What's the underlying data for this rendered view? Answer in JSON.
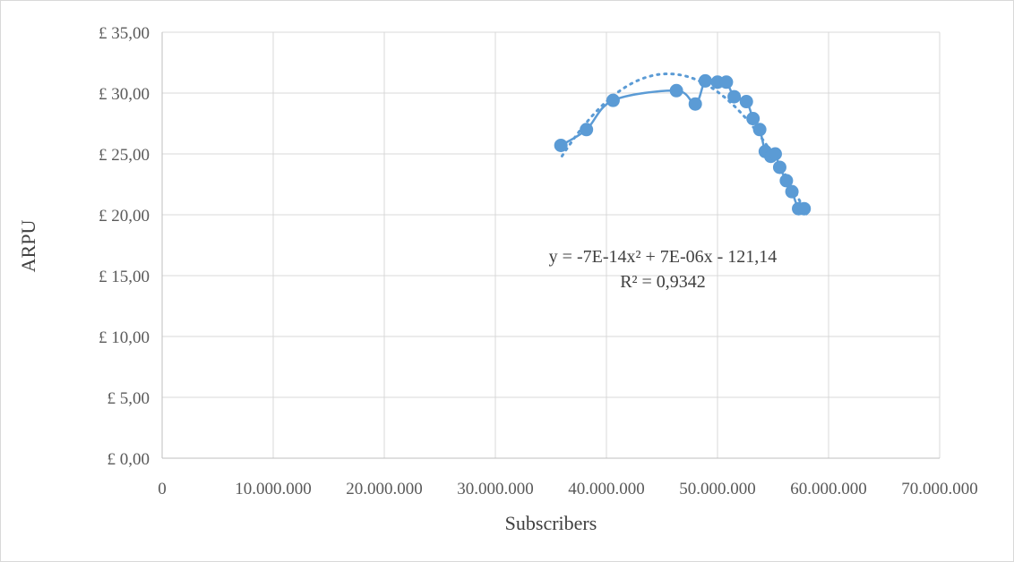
{
  "chart_data": {
    "type": "scatter",
    "xlabel": "Subscribers",
    "ylabel": "ARPU",
    "xlim": [
      0,
      70000000
    ],
    "ylim": [
      0,
      35
    ],
    "x_ticks": [
      0,
      10000000,
      20000000,
      30000000,
      40000000,
      50000000,
      60000000,
      70000000
    ],
    "x_tick_labels": [
      "0",
      "10.000.000",
      "20.000.000",
      "30.000.000",
      "40.000.000",
      "50.000.000",
      "60.000.000",
      "70.000.000"
    ],
    "y_ticks": [
      0,
      5,
      10,
      15,
      20,
      25,
      30,
      35
    ],
    "y_tick_labels": [
      "£ 0,00",
      "£ 5,00",
      "£ 10,00",
      "£ 15,00",
      "£ 20,00",
      "£ 25,00",
      "£ 30,00",
      "£ 35,00"
    ],
    "grid": true,
    "series": [
      {
        "marker": "circle",
        "line": "smoothed",
        "color": "#5b9bd5",
        "x": [
          35900000,
          38200000,
          40600000,
          46300000,
          48000000,
          48900000,
          50000000,
          50800000,
          51500000,
          52600000,
          53200000,
          53800000,
          54300000,
          54800000,
          55200000,
          55600000,
          56200000,
          56700000,
          57300000,
          57800000
        ],
        "y": [
          25.7,
          27.0,
          29.4,
          30.2,
          29.1,
          31.0,
          30.9,
          30.9,
          29.7,
          29.3,
          27.9,
          27.0,
          25.2,
          24.8,
          25.0,
          23.9,
          22.8,
          21.9,
          20.5,
          20.5
        ]
      }
    ],
    "trendline": {
      "type": "polynomial",
      "order": 2,
      "style": "dotted",
      "color": "#5b9bd5",
      "x_range": [
        36000000,
        58000000
      ],
      "equation": "y = -7E-14x² + 7E-06x - 121,14",
      "r_squared": "R² = 0,9342"
    }
  }
}
